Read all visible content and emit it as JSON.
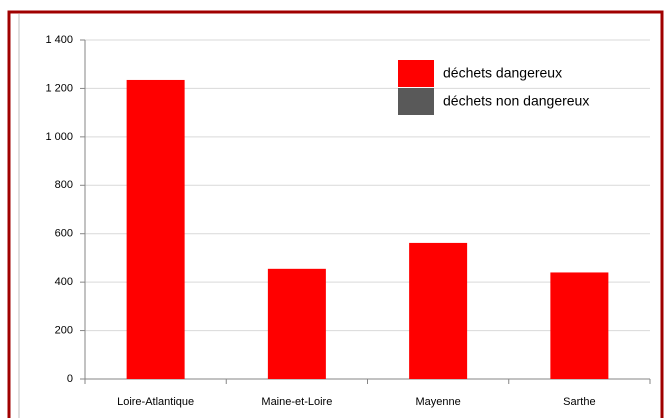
{
  "chart_data": {
    "type": "bar",
    "stacked": true,
    "categories": [
      "Loire-Atlantique",
      "Maine-et-Loire",
      "Mayenne",
      "Sarthe"
    ],
    "series": [
      {
        "name": "déchets dangereux",
        "color": "#ff0000",
        "values": [
          1235,
          455,
          562,
          440
        ]
      },
      {
        "name": "déchets non dangereux",
        "color": "#595959",
        "values": [
          0,
          0,
          0,
          0
        ]
      }
    ],
    "ylim": [
      0,
      1400
    ],
    "yticks": [
      0,
      200,
      400,
      600,
      800,
      {
        "value": 1000,
        "label": "1 000"
      },
      {
        "value": 1200,
        "label": "1 200"
      },
      {
        "value": 1400,
        "label": "1 400"
      }
    ],
    "grid": true,
    "legend": "top-right"
  }
}
